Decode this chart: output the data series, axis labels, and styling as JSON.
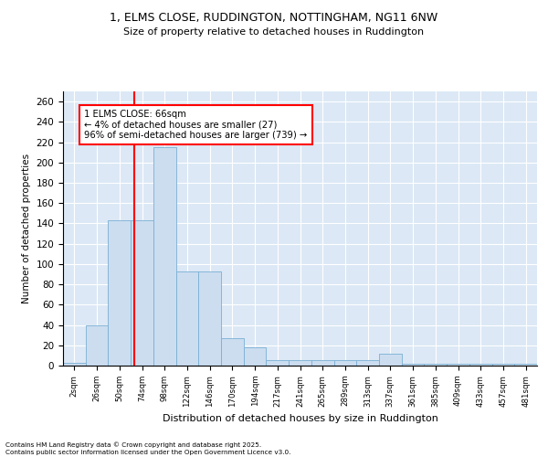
{
  "title_line1": "1, ELMS CLOSE, RUDDINGTON, NOTTINGHAM, NG11 6NW",
  "title_line2": "Size of property relative to detached houses in Ruddington",
  "xlabel": "Distribution of detached houses by size in Ruddington",
  "ylabel": "Number of detached properties",
  "bar_color": "#ccddf0",
  "bar_edge_color": "#7aafd4",
  "background_color": "#dce8f5",
  "grid_color": "#ffffff",
  "red_line_x": 66,
  "annotation_text": "1 ELMS CLOSE: 66sqm\n← 4% of detached houses are smaller (27)\n96% of semi-detached houses are larger (739) →",
  "footer_text": "Contains HM Land Registry data © Crown copyright and database right 2025.\nContains public sector information licensed under the Open Government Licence v3.0.",
  "bin_labels": [
    "2sqm",
    "26sqm",
    "50sqm",
    "74sqm",
    "98sqm",
    "122sqm",
    "146sqm",
    "170sqm",
    "194sqm",
    "217sqm",
    "241sqm",
    "265sqm",
    "289sqm",
    "313sqm",
    "337sqm",
    "361sqm",
    "385sqm",
    "409sqm",
    "433sqm",
    "457sqm",
    "481sqm"
  ],
  "bar_values": [
    3,
    40,
    143,
    143,
    215,
    93,
    93,
    27,
    18,
    5,
    5,
    5,
    5,
    5,
    12,
    2,
    2,
    2,
    2,
    2,
    2
  ],
  "ylim": [
    0,
    270
  ],
  "yticks": [
    0,
    20,
    40,
    60,
    80,
    100,
    120,
    140,
    160,
    180,
    200,
    220,
    240,
    260
  ]
}
